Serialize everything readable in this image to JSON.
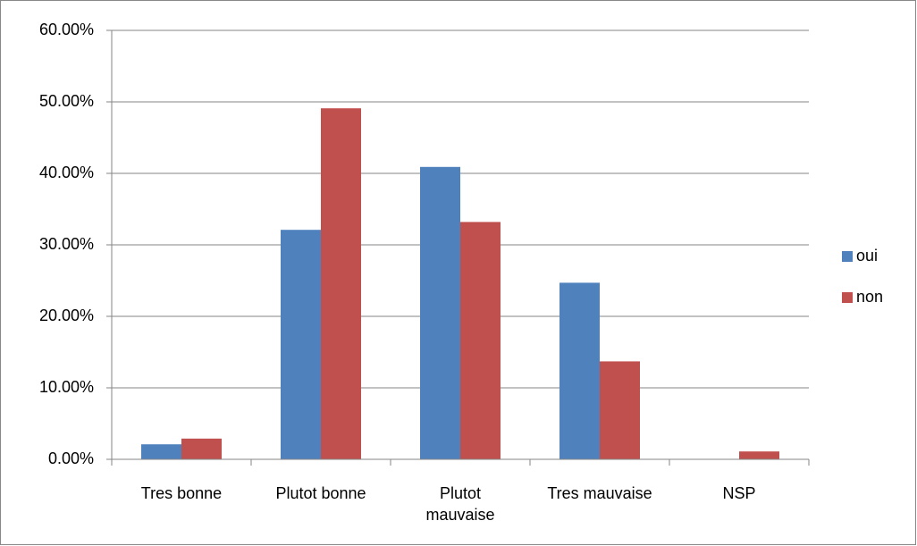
{
  "chart_data": {
    "type": "bar",
    "categories": [
      "Tres bonne",
      "Plutot bonne",
      "Plutot mauvaise",
      "Tres mauvaise",
      "NSP"
    ],
    "series": [
      {
        "name": "oui",
        "color": "#4f81bd",
        "values": [
          2.1,
          32.1,
          40.9,
          24.7,
          0
        ]
      },
      {
        "name": "non",
        "color": "#c0504d",
        "values": [
          2.9,
          49.1,
          33.2,
          13.7,
          1.1
        ]
      }
    ],
    "ylim": [
      0,
      60
    ],
    "yticks": [
      {
        "value": 0,
        "label": "0.00%"
      },
      {
        "value": 10,
        "label": "10.00%"
      },
      {
        "value": 20,
        "label": "20.00%"
      },
      {
        "value": 30,
        "label": "30.00%"
      },
      {
        "value": 40,
        "label": "40.00%"
      },
      {
        "value": 50,
        "label": "50.00%"
      },
      {
        "value": 60,
        "label": "60.00%"
      }
    ],
    "grid": true,
    "legend": "right"
  }
}
